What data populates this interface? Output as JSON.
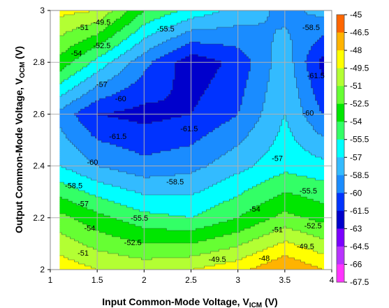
{
  "chart_data": {
    "type": "heatmap",
    "subtype": "filled-contour",
    "title": "",
    "xlabel": {
      "main": "Input Common-Mode Voltage, V",
      "sub": "ICM",
      "unit": " (V)"
    },
    "ylabel": {
      "main": "Output Common-Mode Voltage, V",
      "sub": "OCM",
      "unit": " (V)"
    },
    "xlim": [
      1,
      4
    ],
    "ylim": [
      2,
      3
    ],
    "x_ticks": [
      "1",
      "1.5",
      "2",
      "2.5",
      "3",
      "3.5",
      "4"
    ],
    "y_ticks": [
      "2",
      "2.2",
      "2.4",
      "2.6",
      "2.8",
      "3"
    ],
    "grid": true,
    "data_x_range": [
      1.1,
      3.9
    ],
    "x": [
      1.1,
      1.5,
      2.0,
      2.5,
      3.0,
      3.5,
      3.9
    ],
    "y": [
      2.0,
      2.2,
      2.4,
      2.6,
      2.8,
      3.0
    ],
    "z": [
      [
        -48.5,
        -49.5,
        -50.0,
        -49.5,
        -48.5,
        -46.5,
        -48.0
      ],
      [
        -52.0,
        -53.5,
        -55.0,
        -55.5,
        -54.0,
        -52.0,
        -53.0
      ],
      [
        -57.0,
        -58.5,
        -59.5,
        -59.0,
        -57.5,
        -56.0,
        -56.5
      ],
      [
        -59.0,
        -61.5,
        -62.0,
        -61.5,
        -60.0,
        -57.0,
        -60.0
      ],
      [
        -53.0,
        -56.0,
        -59.5,
        -62.5,
        -61.0,
        -57.5,
        -62.0
      ],
      [
        -49.0,
        -49.5,
        -54.0,
        -56.0,
        -57.5,
        -59.0,
        -58.0
      ]
    ],
    "color_scale": {
      "levels": [
        -67.5,
        -66,
        -64.5,
        -63,
        -61.5,
        -60,
        -58.5,
        -57,
        -55.5,
        -54,
        -52.5,
        -51,
        -49.5,
        -48,
        -46.5,
        -45
      ],
      "tick_labels": [
        "-45",
        "-46.5",
        "-48",
        "-49.5",
        "-51",
        "-52.5",
        "-54",
        "-55.5",
        "-57",
        "-58.5",
        "-60",
        "-61.5",
        "-63",
        "-64.5",
        "-66",
        "-67.5"
      ],
      "band_colors": [
        "#ff33ff",
        "#b833ff",
        "#7a00ff",
        "#0000cc",
        "#0033ff",
        "#1a8cff",
        "#33bbff",
        "#00ffff",
        "#33ff66",
        "#00e600",
        "#66ff33",
        "#b3ff33",
        "#ffff00",
        "#ffb300",
        "#ff6600"
      ]
    },
    "contour_labels": [
      {
        "text": "-49.5",
        "x": 1.55,
        "y": 2.955
      },
      {
        "text": "-51",
        "x": 1.35,
        "y": 2.935
      },
      {
        "text": "-52.5",
        "x": 1.55,
        "y": 2.865
      },
      {
        "text": "-54",
        "x": 1.28,
        "y": 2.835
      },
      {
        "text": "-55.5",
        "x": 2.23,
        "y": 2.93
      },
      {
        "text": "-57",
        "x": 1.55,
        "y": 2.715
      },
      {
        "text": "-60",
        "x": 1.75,
        "y": 2.66
      },
      {
        "text": "-61.5",
        "x": 1.72,
        "y": 2.515
      },
      {
        "text": "-61.5",
        "x": 2.48,
        "y": 2.545
      },
      {
        "text": "-60",
        "x": 1.45,
        "y": 2.415
      },
      {
        "text": "-58.5",
        "x": 1.25,
        "y": 2.325
      },
      {
        "text": "-58.5",
        "x": 2.33,
        "y": 2.34
      },
      {
        "text": "-57",
        "x": 1.35,
        "y": 2.255
      },
      {
        "text": "-57",
        "x": 3.42,
        "y": 2.43
      },
      {
        "text": "-55.5",
        "x": 1.95,
        "y": 2.2
      },
      {
        "text": "-55.5",
        "x": 3.75,
        "y": 2.305
      },
      {
        "text": "-54",
        "x": 1.42,
        "y": 2.16
      },
      {
        "text": "-54",
        "x": 3.18,
        "y": 2.235
      },
      {
        "text": "-52.5",
        "x": 1.88,
        "y": 2.105
      },
      {
        "text": "-52.5",
        "x": 3.8,
        "y": 2.17
      },
      {
        "text": "-51",
        "x": 1.35,
        "y": 2.065
      },
      {
        "text": "-51",
        "x": 3.42,
        "y": 2.155
      },
      {
        "text": "-49.5",
        "x": 2.78,
        "y": 2.04
      },
      {
        "text": "-49.5",
        "x": 3.72,
        "y": 2.09
      },
      {
        "text": "-48",
        "x": 3.28,
        "y": 2.045
      },
      {
        "text": "-58.5",
        "x": 3.78,
        "y": 2.935
      },
      {
        "text": "-61.5",
        "x": 3.83,
        "y": 2.75
      },
      {
        "text": "-60",
        "x": 3.75,
        "y": 2.605
      }
    ]
  }
}
